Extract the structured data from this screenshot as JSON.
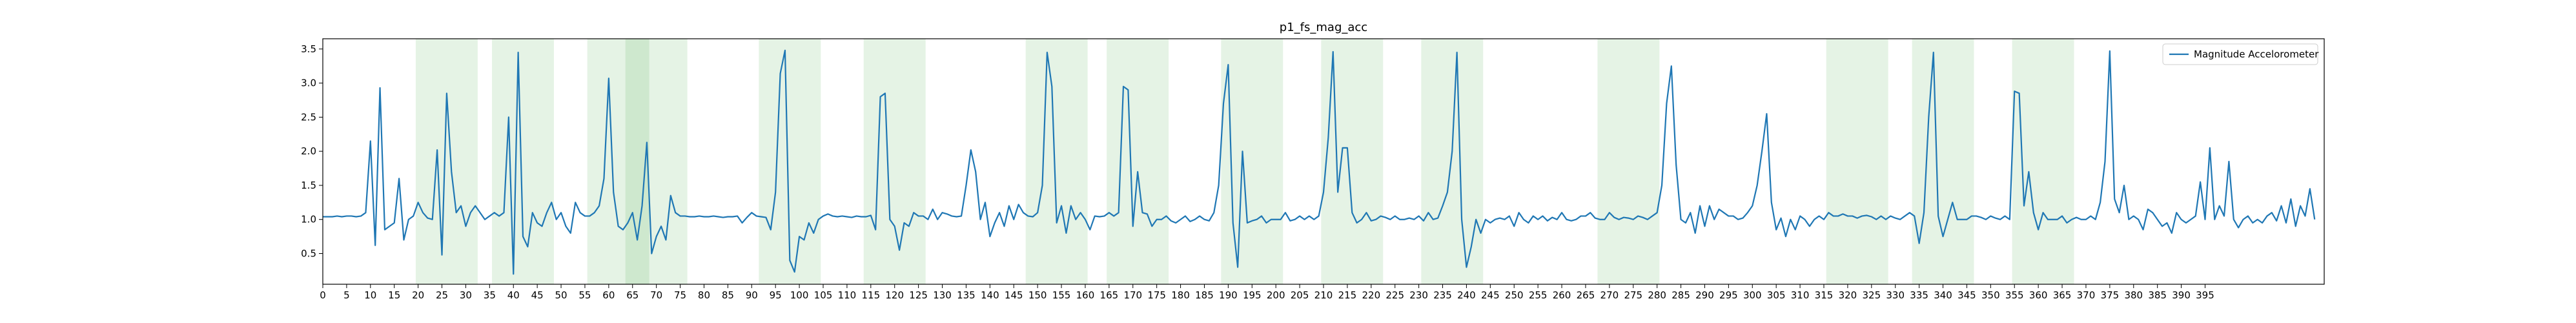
{
  "chart_data": {
    "type": "line",
    "title": "p1_fs_mag_acc",
    "xlabel": "",
    "ylabel": "",
    "xlim": [
      0,
      420
    ],
    "ylim": [
      0.05,
      3.65
    ],
    "x_ticks": [
      0,
      5,
      10,
      15,
      20,
      25,
      30,
      35,
      40,
      45,
      50,
      55,
      60,
      65,
      70,
      75,
      80,
      85,
      90,
      95,
      100,
      105,
      110,
      115,
      120,
      125,
      130,
      135,
      140,
      145,
      150,
      155,
      160,
      165,
      170,
      175,
      180,
      185,
      190,
      195,
      200,
      205,
      210,
      215,
      220,
      225,
      230,
      235,
      240,
      245,
      250,
      255,
      260,
      265,
      270,
      275,
      280,
      285,
      290,
      295,
      300,
      305,
      310,
      315,
      320,
      325,
      330,
      335,
      340,
      345,
      350,
      355,
      360,
      365,
      370,
      375,
      380,
      385,
      390,
      395
    ],
    "y_ticks": [
      0.5,
      1.0,
      1.5,
      2.0,
      2.5,
      3.0,
      3.5
    ],
    "y_tick_labels": [
      "0.5",
      "1.0",
      "1.5",
      "2.0",
      "2.5",
      "3.0",
      "3.5"
    ],
    "grid": false,
    "legend_position": "top-right",
    "line_color": "#1f77b4",
    "shade_color": "#2ca02c",
    "shaded_regions": [
      [
        19.5,
        32.5
      ],
      [
        35.5,
        48.5
      ],
      [
        55.5,
        68.5
      ],
      [
        63.5,
        76.5
      ],
      [
        91.5,
        104.5
      ],
      [
        113.5,
        126.5
      ],
      [
        147.5,
        160.5
      ],
      [
        164.5,
        177.5
      ],
      [
        188.5,
        201.5
      ],
      [
        209.5,
        222.5
      ],
      [
        230.5,
        243.5
      ],
      [
        267.5,
        280.5
      ],
      [
        315.5,
        328.5
      ],
      [
        333.5,
        346.5
      ],
      [
        354.5,
        367.5
      ]
    ],
    "series": [
      {
        "name": "Magnitude Accelorometer",
        "x_start": 0,
        "x_step": 1,
        "values": [
          1.04,
          1.04,
          1.04,
          1.05,
          1.04,
          1.05,
          1.05,
          1.04,
          1.05,
          1.1,
          2.15,
          0.62,
          2.93,
          0.85,
          0.9,
          0.95,
          1.6,
          0.7,
          1.0,
          1.05,
          1.25,
          1.1,
          1.02,
          1.0,
          2.02,
          0.48,
          2.85,
          1.7,
          1.1,
          1.2,
          0.9,
          1.1,
          1.2,
          1.1,
          1.0,
          1.05,
          1.1,
          1.05,
          1.1,
          2.5,
          0.2,
          3.45,
          0.75,
          0.6,
          1.1,
          0.95,
          0.9,
          1.1,
          1.25,
          1.0,
          1.1,
          0.9,
          0.8,
          1.25,
          1.1,
          1.05,
          1.05,
          1.1,
          1.2,
          1.6,
          3.07,
          1.4,
          0.9,
          0.85,
          0.95,
          1.1,
          0.7,
          1.2,
          2.13,
          0.5,
          0.75,
          0.9,
          0.7,
          1.35,
          1.1,
          1.05,
          1.05,
          1.04,
          1.04,
          1.05,
          1.04,
          1.04,
          1.05,
          1.04,
          1.03,
          1.04,
          1.04,
          1.05,
          0.95,
          1.03,
          1.1,
          1.05,
          1.04,
          1.03,
          0.85,
          1.4,
          3.14,
          3.48,
          0.4,
          0.23,
          0.75,
          0.7,
          0.95,
          0.8,
          1.0,
          1.05,
          1.08,
          1.05,
          1.04,
          1.05,
          1.04,
          1.03,
          1.05,
          1.04,
          1.04,
          1.06,
          0.85,
          2.8,
          2.85,
          1.0,
          0.9,
          0.55,
          0.95,
          0.9,
          1.1,
          1.05,
          1.05,
          1.0,
          1.15,
          1.0,
          1.1,
          1.08,
          1.05,
          1.04,
          1.05,
          1.5,
          2.02,
          1.7,
          1.0,
          1.25,
          0.75,
          0.95,
          1.1,
          0.9,
          1.2,
          1.0,
          1.22,
          1.1,
          1.05,
          1.04,
          1.1,
          1.5,
          3.45,
          2.95,
          0.95,
          1.2,
          0.8,
          1.2,
          1.0,
          1.1,
          1.0,
          0.85,
          1.05,
          1.04,
          1.05,
          1.1,
          1.05,
          1.1,
          2.95,
          2.9,
          0.9,
          1.7,
          1.1,
          1.08,
          0.9,
          1.0,
          1.0,
          1.05,
          0.98,
          0.95,
          1.0,
          1.05,
          0.97,
          1.0,
          1.05,
          1.0,
          0.98,
          1.1,
          1.5,
          2.7,
          3.27,
          0.95,
          0.3,
          2.0,
          0.95,
          0.98,
          1.0,
          1.05,
          0.95,
          1.0,
          1.0,
          1.0,
          1.1,
          0.98,
          1.0,
          1.05,
          1.0,
          1.05,
          1.0,
          1.05,
          1.4,
          2.2,
          3.46,
          1.4,
          2.05,
          2.05,
          1.1,
          0.95,
          1.0,
          1.1,
          0.98,
          1.0,
          1.05,
          1.03,
          1.0,
          1.05,
          1.0,
          1.0,
          1.02,
          1.0,
          1.05,
          0.98,
          1.1,
          1.0,
          1.02,
          1.2,
          1.4,
          2.0,
          3.45,
          1.0,
          0.3,
          0.6,
          1.0,
          0.8,
          1.0,
          0.95,
          1.0,
          1.02,
          1.0,
          1.05,
          0.9,
          1.1,
          1.0,
          0.95,
          1.05,
          1.0,
          1.05,
          0.98,
          1.03,
          1.0,
          1.1,
          1.0,
          0.98,
          1.0,
          1.05,
          1.05,
          1.1,
          1.02,
          1.0,
          1.0,
          1.1,
          1.03,
          1.0,
          1.03,
          1.02,
          1.0,
          1.05,
          1.03,
          1.0,
          1.05,
          1.1,
          1.5,
          2.7,
          3.25,
          1.8,
          1.0,
          0.95,
          1.1,
          0.8,
          1.2,
          0.9,
          1.2,
          1.0,
          1.15,
          1.1,
          1.05,
          1.05,
          1.0,
          1.02,
          1.1,
          1.2,
          1.5,
          2.0,
          2.55,
          1.25,
          0.85,
          1.02,
          0.75,
          1.0,
          0.85,
          1.05,
          1.0,
          0.9,
          1.0,
          1.05,
          1.0,
          1.1,
          1.05,
          1.05,
          1.08,
          1.05,
          1.05,
          1.02,
          1.05,
          1.06,
          1.04,
          1.0,
          1.05,
          1.0,
          1.05,
          1.02,
          1.0,
          1.05,
          1.1,
          1.05,
          0.65,
          1.1,
          2.5,
          3.45,
          1.05,
          0.75,
          1.0,
          1.25,
          1.0,
          1.0,
          1.0,
          1.05,
          1.05,
          1.03,
          1.0,
          1.05,
          1.02,
          1.0,
          1.05,
          1.0,
          2.88,
          2.85,
          1.2,
          1.7,
          1.1,
          0.85,
          1.1,
          1.0,
          1.0,
          1.0,
          1.05,
          0.95,
          1.0,
          1.03,
          1.0,
          1.0,
          1.05,
          1.0,
          1.25,
          1.85,
          3.47,
          1.3,
          1.1,
          1.5,
          1.0,
          1.05,
          1.0,
          0.85,
          1.15,
          1.1,
          1.0,
          0.9,
          0.95,
          0.8,
          1.1,
          1.0,
          0.95,
          1.0,
          1.05,
          1.55,
          1.0,
          2.05,
          1.0,
          1.2,
          1.05,
          1.85,
          1.0,
          0.88,
          1.0,
          1.05,
          0.95,
          1.0,
          0.95,
          1.05,
          1.1,
          0.98,
          1.2,
          0.95,
          1.3,
          0.9,
          1.2,
          1.05,
          1.45,
          1.0
        ]
      }
    ]
  }
}
